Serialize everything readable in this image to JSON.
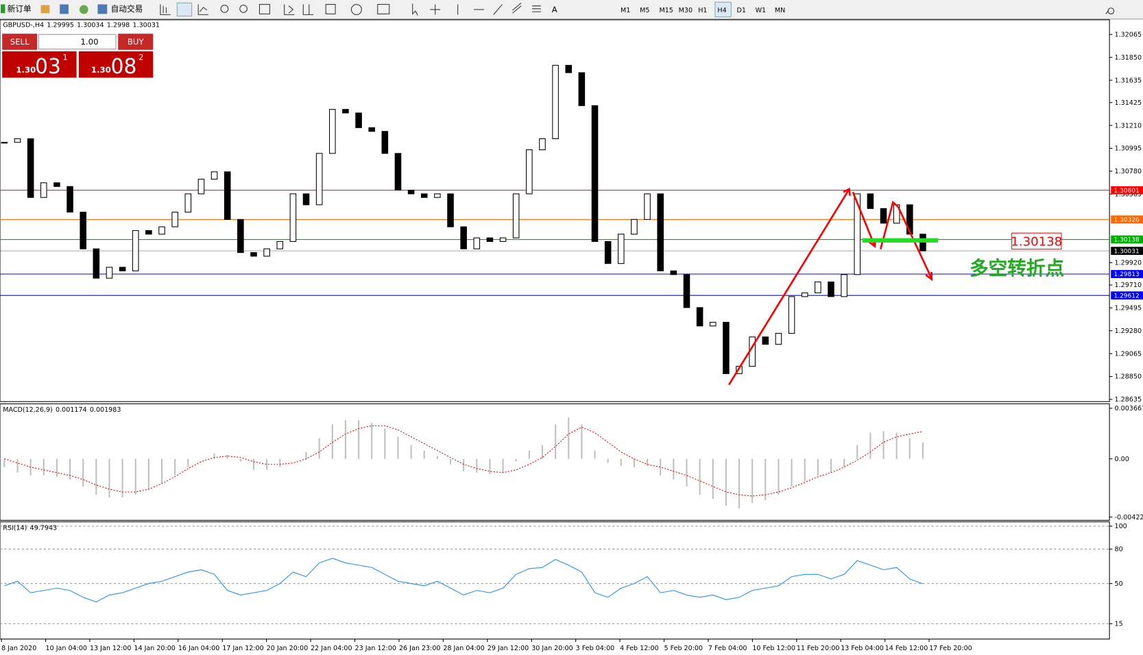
{
  "toolbar": {
    "new_order": "新订单",
    "auto_trading": "自动交易",
    "timeframes": [
      "M1",
      "M5",
      "M15",
      "M30",
      "H1",
      "H4",
      "D1",
      "W1",
      "MN"
    ],
    "active_timeframe": 5
  },
  "trade_panel": {
    "sell": "SELL",
    "buy": "BUY",
    "lots": "1.00",
    "sell_price": {
      "prefix": "1.30",
      "pips": "03",
      "point": "1"
    },
    "buy_price": {
      "prefix": "1.30",
      "pips": "08",
      "point": "2"
    }
  },
  "annotations": {
    "price_label": "1.30138",
    "text": "多空转折点"
  },
  "x_labels": [
    "8 Jan 2020",
    "10 Jan 04:00",
    "13 Jan 12:00",
    "14 Jan 20:00",
    "16 Jan 04:00",
    "17 Jan 12:00",
    "20 Jan 20:00",
    "22 Jan 04:00",
    "23 Jan 12:00",
    "26 Jan 23:00",
    "28 Jan 04:00",
    "29 Jan 12:00",
    "30 Jan 20:00",
    "3 Feb 04:00",
    "4 Feb 12:00",
    "5 Feb 20:00",
    "7 Feb 04:00",
    "10 Feb 12:00",
    "11 Feb 20:00",
    "13 Feb 04:00",
    "14 Feb 12:00",
    "17 Feb 20:00"
  ],
  "chart_data": [
    {
      "type": "candlestick",
      "symbol": "GBPUSD-,H4",
      "ohlc": [
        1.29995,
        1.30034,
        1.2998,
        1.30031
      ],
      "closes": [
        1.31051,
        1.31085,
        1.30533,
        1.30671,
        1.30636,
        1.30395,
        1.3005,
        1.29774,
        1.29877,
        1.29843,
        1.30222,
        1.30188,
        1.30257,
        1.30395,
        1.30567,
        1.30705,
        1.30774,
        1.30326,
        1.30015,
        1.29981,
        1.3005,
        1.30119,
        1.30567,
        1.30464,
        1.30947,
        1.31361,
        1.31327,
        1.31189,
        1.31154,
        1.30947,
        1.30602,
        1.30567,
        1.30533,
        1.30567,
        1.30257,
        1.3005,
        1.30153,
        1.30119,
        1.30153,
        1.30567,
        1.30981,
        1.31085,
        1.31775,
        1.31706,
        1.31396,
        1.30119,
        1.29912,
        1.30188,
        1.30326,
        1.30567,
        1.29843,
        1.29808,
        1.29498,
        1.29325,
        1.2936,
        1.28877,
        1.28946,
        1.29222,
        1.29153,
        1.29256,
        1.29601,
        1.29636,
        1.29739,
        1.29601,
        1.29808,
        1.30567,
        1.30429,
        1.30291,
        1.30464,
        1.30188,
        1.30031
      ],
      "ylim": [
        1.28614,
        1.32203
      ],
      "yticks": [
        1.32065,
        {
          "value": 1.3185,
          "label": "1.31850"
        },
        1.31635,
        1.31425,
        {
          "value": 1.3121,
          "label": "1.31210"
        },
        1.30995,
        {
          "value": 1.3078,
          "label": "1.30780"
        },
        1.30565,
        {
          "value": 1.2992,
          "label": "1.29920"
        },
        {
          "value": 1.2971,
          "label": "1.29710"
        },
        1.29495,
        {
          "value": 1.2928,
          "label": "1.29280"
        },
        1.29065,
        {
          "value": 1.2885,
          "label": "1.28850"
        },
        1.28635
      ],
      "levels": [
        1.30601,
        1.30326,
        1.30138,
        1.30031,
        1.29813,
        1.29612
      ],
      "level_colors": [
        "#ff0000",
        "#ff6600",
        "#00b000",
        "#000000",
        "#0000ff",
        "#0000ff"
      ]
    },
    {
      "type": "macd",
      "label": "MACD(12,26,9)",
      "histogram": [
        -0.0006,
        -0.001,
        -0.0012,
        -0.0012,
        -0.0013,
        -0.0015,
        -0.002,
        -0.0026,
        -0.0028,
        -0.0028,
        -0.0026,
        -0.0022,
        -0.0018,
        -0.0012,
        -0.0006,
        0,
        0.0004,
        0.0003,
        -0.0002,
        -0.0008,
        -0.0008,
        -0.0006,
        0,
        0.0005,
        0.0015,
        0.0025,
        0.0028,
        0.0028,
        0.0026,
        0.0022,
        0.0016,
        0.001,
        0.0006,
        0.0002,
        -0.0004,
        -0.0009,
        -0.001,
        -0.0011,
        -0.001,
        -0.0002,
        0.0006,
        0.001,
        0.0025,
        0.003,
        0.0025,
        0.0006,
        -0.0003,
        -0.0005,
        -0.0006,
        -0.0005,
        -0.0012,
        -0.0015,
        -0.002,
        -0.0026,
        -0.0029,
        -0.0034,
        -0.0036,
        -0.0032,
        -0.003,
        -0.0026,
        -0.002,
        -0.0016,
        -0.0012,
        -0.001,
        -0.0006,
        0.001,
        0.0019,
        0.002,
        0.0019,
        0.0015,
        0.001174
      ],
      "signal": [
        0,
        -0.0003,
        -0.0006,
        -0.0008,
        -0.001,
        -0.0012,
        -0.0015,
        -0.0019,
        -0.0022,
        -0.0024,
        -0.0024,
        -0.0022,
        -0.0018,
        -0.0013,
        -0.0007,
        -0.0002,
        0.0001,
        0.0002,
        0.0001,
        -0.0002,
        -0.0004,
        -0.0004,
        -0.0003,
        0,
        0.0005,
        0.0012,
        0.0018,
        0.0022,
        0.0024,
        0.0024,
        0.0021,
        0.0016,
        0.0011,
        0.0006,
        0.0001,
        -0.0004,
        -0.0007,
        -0.0009,
        -0.001,
        -0.0008,
        -0.0004,
        0.0001,
        0.0009,
        0.0018,
        0.0023,
        0.0019,
        0.0012,
        0.0005,
        0,
        -0.0004,
        -0.0006,
        -0.0009,
        -0.0012,
        -0.0016,
        -0.002,
        -0.0024,
        -0.0026,
        -0.0027,
        -0.0026,
        -0.0024,
        -0.0021,
        -0.0017,
        -0.0013,
        -0.001,
        -0.0006,
        -0.0001,
        0.0005,
        0.0012,
        0.0016,
        0.0018,
        0.001983
      ],
      "histogram_color": "#c0c0c0",
      "signal_color": "#ff0000",
      "ylim": [
        -0.00446,
        0.00399
      ],
      "yticks": [
        0.003667,
        {
          "value": 0,
          "label": "0.00"
        },
        -0.00422
      ]
    },
    {
      "type": "rsi",
      "label": "RSI(14)",
      "values": [
        48,
        52,
        42,
        44,
        46,
        44,
        38,
        34,
        40,
        42,
        46,
        50,
        52,
        56,
        60,
        62,
        58,
        44,
        40,
        42,
        44,
        50,
        60,
        56,
        68,
        72,
        68,
        66,
        64,
        58,
        52,
        50,
        48,
        52,
        46,
        40,
        44,
        42,
        46,
        58,
        63,
        64,
        71,
        66,
        60,
        42,
        38,
        46,
        50,
        56,
        42,
        44,
        40,
        38,
        40,
        36,
        38,
        44,
        46,
        48,
        56,
        58,
        58,
        54,
        58,
        70,
        66,
        62,
        64,
        54,
        49.7943
      ],
      "color": "#1e90ff",
      "grid": true,
      "ylim": [
        1.6,
        103.8
      ],
      "yticks": [
        100,
        80,
        50,
        15
      ]
    }
  ]
}
